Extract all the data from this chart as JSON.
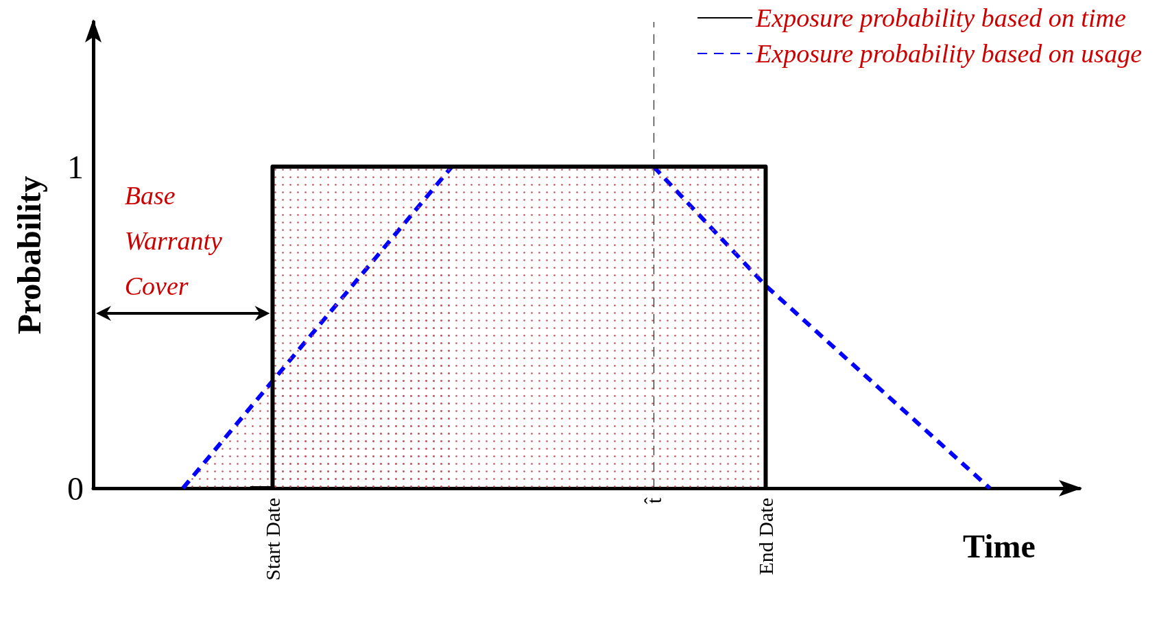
{
  "chart_data": {
    "type": "line",
    "xlabel": "Time",
    "ylabel": "Probability",
    "categories": [
      null,
      null,
      null,
      null,
      null,
      null,
      null,
      null,
      "Start Date",
      null,
      null,
      null,
      null,
      null,
      null,
      null,
      null,
      null,
      null,
      null,
      null,
      null,
      null,
      null,
      null,
      "t̂",
      null,
      null,
      null,
      null,
      "End Date",
      null,
      null,
      null,
      null,
      null,
      null,
      null,
      null,
      null,
      null,
      null,
      null,
      null,
      null
    ],
    "series": [
      {
        "name": "Exposure probability based on time",
        "type": "step",
        "color": "#000000",
        "line_style": "solid",
        "values": [
          null,
          null,
          null,
          null,
          null,
          null,
          null,
          0,
          1,
          1,
          1,
          1,
          1,
          1,
          1,
          1,
          1,
          1,
          1,
          1,
          1,
          1,
          1,
          1,
          1,
          1,
          1,
          1,
          1,
          1,
          0,
          null,
          null,
          null,
          null,
          null,
          null,
          null,
          null,
          null,
          null,
          null,
          null,
          null,
          null
        ]
      },
      {
        "name": "Exposure probability based on usage",
        "type": "area",
        "color": "#0000ff",
        "line_style": "dashed",
        "values": [
          null,
          null,
          null,
          null,
          0,
          null,
          null,
          null,
          null,
          null,
          null,
          null,
          null,
          null,
          null,
          null,
          1,
          null,
          null,
          null,
          null,
          null,
          null,
          null,
          null,
          null,
          null,
          null,
          null,
          null,
          null,
          null,
          null,
          null,
          null,
          null,
          null,
          null,
          null,
          null,
          null,
          null,
          null,
          null,
          null
        ]
      },
      {
        "color": "#0000ff",
        "line_style": "dashed",
        "values": [
          null,
          null,
          null,
          null,
          null,
          null,
          null,
          null,
          null,
          null,
          null,
          null,
          null,
          null,
          null,
          null,
          null,
          null,
          null,
          null,
          null,
          null,
          null,
          null,
          null,
          1,
          null,
          null,
          null,
          null,
          0.63,
          null,
          null,
          null,
          null,
          null,
          null,
          null,
          null,
          null,
          0,
          null,
          null,
          null,
          null
        ]
      }
    ],
    "ylim": [
      0,
      1.45
    ],
    "yticks": [
      0,
      1
    ],
    "ref_lines": [
      {
        "axis": "x",
        "value": "t̂",
        "label": null,
        "color": "#000000",
        "line_style": "dashed"
      }
    ],
    "annotations": [
      "Base Warranty Cover"
    ],
    "legend": "top right",
    "grid": false,
    "marker": "none"
  }
}
